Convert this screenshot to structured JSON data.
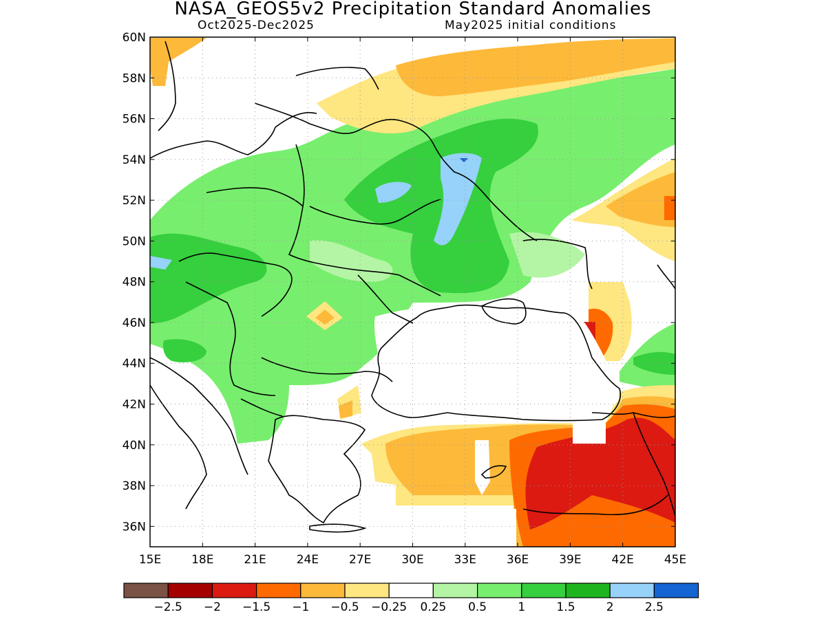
{
  "title": "NASA_GEOS5v2 Precipitation Standard Anomalies",
  "period": "Oct2025-Dec2025",
  "init": "May2025 initial conditions",
  "lat_ticks": [
    "60N",
    "58N",
    "56N",
    "54N",
    "52N",
    "50N",
    "48N",
    "46N",
    "44N",
    "42N",
    "40N",
    "38N",
    "36N"
  ],
  "lon_ticks": [
    "15E",
    "18E",
    "21E",
    "24E",
    "27E",
    "30E",
    "33E",
    "36E",
    "39E",
    "42E",
    "45E"
  ],
  "colorbar": {
    "colors": [
      "#7a5246",
      "#a50000",
      "#dc1a12",
      "#ff6a00",
      "#fdb93a",
      "#fee680",
      "#ffffff",
      "#b4f5a5",
      "#78ee6e",
      "#36cf3e",
      "#1eb41e",
      "#96d2fa",
      "#1464d2"
    ],
    "labels": [
      "-2.5",
      "-2",
      "-1.5",
      "-1",
      "-0.5",
      "-0.25",
      "0.25",
      "0.5",
      "1",
      "1.5",
      "2",
      "2.5"
    ]
  }
}
